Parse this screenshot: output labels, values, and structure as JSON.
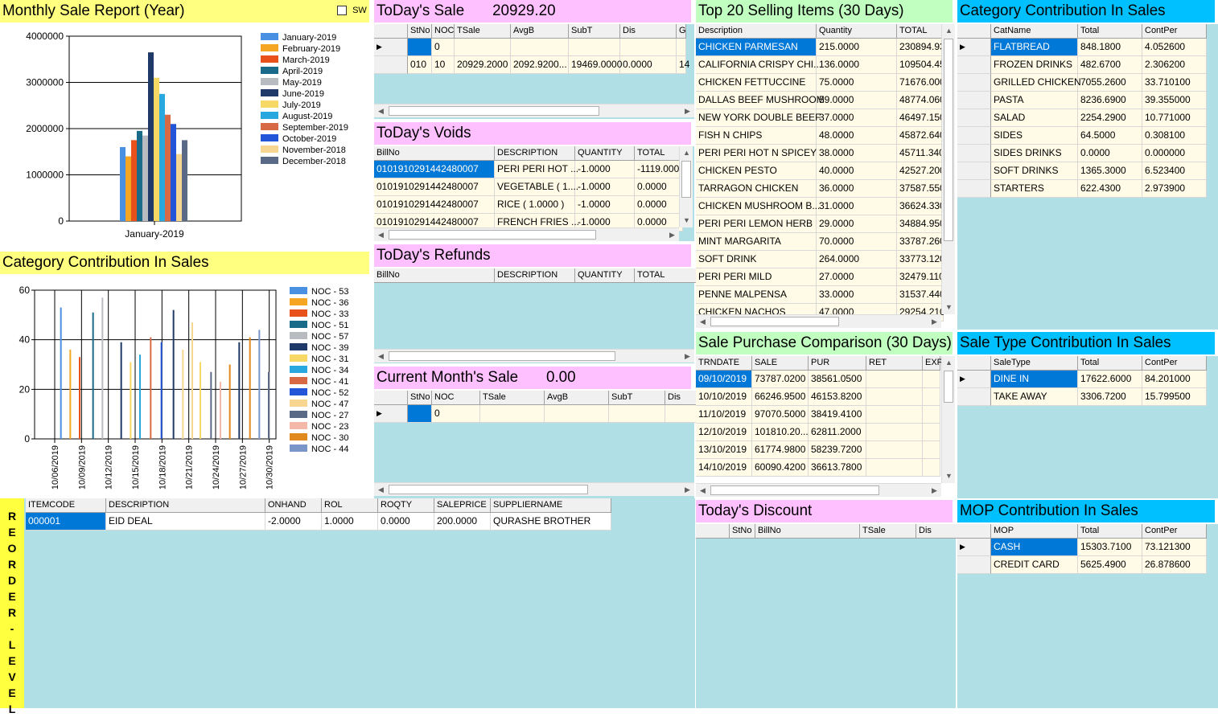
{
  "monthly": {
    "title": "Monthly Sale Report (Year)",
    "sw_label": "SW",
    "chart_data": {
      "type": "bar",
      "categories": [
        "January-2019"
      ],
      "series": [
        {
          "name": "January-2019",
          "values": [
            1600000
          ],
          "color": "#4a90e2"
        },
        {
          "name": "February-2019",
          "values": [
            1400000
          ],
          "color": "#f5a623"
        },
        {
          "name": "March-2019",
          "values": [
            1750000
          ],
          "color": "#e8501c"
        },
        {
          "name": "April-2019",
          "values": [
            1950000
          ],
          "color": "#1a6b8a"
        },
        {
          "name": "May-2019",
          "values": [
            1850000
          ],
          "color": "#b8bcc0"
        },
        {
          "name": "June-2019",
          "values": [
            3650000
          ],
          "color": "#1f3a68"
        },
        {
          "name": "July-2019",
          "values": [
            3100000
          ],
          "color": "#f8d865"
        },
        {
          "name": "August-2019",
          "values": [
            2750000
          ],
          "color": "#29a8e0"
        },
        {
          "name": "September-2019",
          "values": [
            2300000
          ],
          "color": "#d76a45"
        },
        {
          "name": "October-2019",
          "values": [
            2100000
          ],
          "color": "#2255d8"
        },
        {
          "name": "November-2018",
          "values": [
            1450000
          ],
          "color": "#f6d690"
        },
        {
          "name": "December-2018",
          "values": [
            1750000
          ],
          "color": "#5a6a86"
        }
      ],
      "y_ticks": [
        "4000000",
        "3000000",
        "2000000",
        "1000000",
        "0"
      ],
      "ylim": [
        0,
        4000000
      ],
      "legend_position": "right",
      "grid": true
    }
  },
  "category_chart": {
    "title": "Category Contribution In Sales",
    "chart_data": {
      "type": "bar",
      "categories": [
        "10/06/2019",
        "10/09/2019",
        "10/12/2019",
        "10/15/2019",
        "10/18/2019",
        "10/21/2019",
        "10/24/2019",
        "10/27/2019",
        "10/30/2019"
      ],
      "series": [
        {
          "name": "NOC - 53",
          "color": "#4a90e2"
        },
        {
          "name": "NOC - 36",
          "color": "#f5a623"
        },
        {
          "name": "NOC - 33",
          "color": "#e8501c"
        },
        {
          "name": "NOC - 51",
          "color": "#1a6b8a"
        },
        {
          "name": "NOC - 57",
          "color": "#b8bcc0"
        },
        {
          "name": "NOC - 39",
          "color": "#1f3a68"
        },
        {
          "name": "NOC - 31",
          "color": "#f8d865"
        },
        {
          "name": "NOC - 34",
          "color": "#29a8e0"
        },
        {
          "name": "NOC - 41",
          "color": "#d76a45"
        },
        {
          "name": "NOC - 52",
          "color": "#2255d8"
        },
        {
          "name": "NOC - 47",
          "color": "#f6d690"
        },
        {
          "name": "NOC - 27",
          "color": "#5a6a86"
        },
        {
          "name": "NOC - 23",
          "color": "#f4b8a8"
        },
        {
          "name": "NOC - 30",
          "color": "#e08a1e"
        },
        {
          "name": "NOC - 44",
          "color": "#7a96c8"
        }
      ],
      "bars": [
        {
          "x": 0.95,
          "value": 53,
          "color": "#4a90e2"
        },
        {
          "x": 1.3,
          "value": 36,
          "color": "#f5a623"
        },
        {
          "x": 1.65,
          "value": 33,
          "color": "#e8501c"
        },
        {
          "x": 2.15,
          "value": 51,
          "color": "#1a6b8a"
        },
        {
          "x": 2.5,
          "value": 57,
          "color": "#b8bcc0"
        },
        {
          "x": 3.2,
          "value": 39,
          "color": "#1f3a68"
        },
        {
          "x": 3.55,
          "value": 31,
          "color": "#f8d865"
        },
        {
          "x": 3.9,
          "value": 34,
          "color": "#29a8e0"
        },
        {
          "x": 4.3,
          "value": 41,
          "color": "#d76a45"
        },
        {
          "x": 4.7,
          "value": 39,
          "color": "#2255d8"
        },
        {
          "x": 5.15,
          "value": 52,
          "color": "#1f3a68"
        },
        {
          "x": 5.5,
          "value": 36,
          "color": "#f6d690"
        },
        {
          "x": 5.85,
          "value": 47,
          "color": "#f6d690"
        },
        {
          "x": 6.15,
          "value": 31,
          "color": "#f8d865"
        },
        {
          "x": 6.55,
          "value": 27,
          "color": "#5a6a86"
        },
        {
          "x": 6.9,
          "value": 23,
          "color": "#f4b8a8"
        },
        {
          "x": 7.25,
          "value": 30,
          "color": "#e08a1e"
        },
        {
          "x": 7.6,
          "value": 39,
          "color": "#1f3a68"
        },
        {
          "x": 8.0,
          "value": 41,
          "color": "#e08a1e"
        },
        {
          "x": 8.35,
          "value": 44,
          "color": "#7a96c8"
        },
        {
          "x": 8.7,
          "value": 27,
          "color": "#5a6a86"
        }
      ],
      "y_ticks": [
        "60",
        "40",
        "20",
        "0"
      ],
      "ylim": [
        0,
        60
      ],
      "legend_position": "right",
      "grid": true
    }
  },
  "todays_sale": {
    "title": "ToDay's Sale",
    "amount": "20929.20",
    "columns": [
      "StNo",
      "NOC",
      "TSale",
      "AvgB",
      "SubT",
      "Dis",
      "G"
    ],
    "rows": [
      [
        "",
        "0",
        "",
        "",
        "",
        "",
        ""
      ],
      [
        "010",
        "10",
        "20929.2000",
        "2092.9200...",
        "19469.0000",
        "0.0000",
        "14"
      ]
    ]
  },
  "todays_voids": {
    "title": "ToDay's Voids",
    "columns": [
      "BillNo",
      "DESCRIPTION",
      "QUANTITY",
      "TOTAL"
    ],
    "rows": [
      [
        "0101910291442480007",
        "PERI PERI HOT ...",
        "-1.0000",
        "-1119.0000"
      ],
      [
        "0101910291442480007",
        "VEGETABLE ( 1....",
        "-1.0000",
        "0.0000"
      ],
      [
        "0101910291442480007",
        "RICE ( 1.0000 )",
        "-1.0000",
        "0.0000"
      ],
      [
        "0101910291442480007",
        "FRENCH FRIES ...",
        "-1.0000",
        "0.0000"
      ]
    ]
  },
  "todays_refunds": {
    "title": "ToDay's Refunds",
    "columns": [
      "BillNo",
      "DESCRIPTION",
      "QUANTITY",
      "TOTAL"
    ]
  },
  "current_month": {
    "title": "Current Month's Sale",
    "amount": "0.00",
    "columns": [
      "StNo",
      "NOC",
      "TSale",
      "AvgB",
      "SubT",
      "Dis"
    ],
    "rows": [
      [
        "",
        "0",
        "",
        "",
        "",
        ""
      ]
    ]
  },
  "top20": {
    "title": "Top 20 Selling Items (30 Days)",
    "columns": [
      "Description",
      "Quantity",
      "TOTAL"
    ],
    "rows": [
      [
        "CHICKEN PARMESAN",
        "215.0000",
        "230894.93"
      ],
      [
        "CALIFORNIA CRISPY CHI...",
        "136.0000",
        "109504.45"
      ],
      [
        "CHICKEN FETTUCCINE",
        "75.0000",
        "71676.000"
      ],
      [
        "DALLAS BEEF MUSHROOM",
        "59.0000",
        "48774.060"
      ],
      [
        "NEW YORK DOUBLE BEEF",
        "37.0000",
        "46497.150"
      ],
      [
        "FISH N CHIPS",
        "48.0000",
        "45872.640"
      ],
      [
        "PERI PERI HOT N SPICEY",
        "38.0000",
        "45711.340"
      ],
      [
        "CHICKEN PESTO",
        "40.0000",
        "42527.200"
      ],
      [
        "TARRAGON CHICKEN",
        "36.0000",
        "37587.550"
      ],
      [
        "CHICKEN MUSHROOM B...",
        "31.0000",
        "36624.330"
      ],
      [
        "PERI PERI LEMON  HERB",
        "29.0000",
        "34884.950"
      ],
      [
        "MINT MARGARITA",
        "70.0000",
        "33787.260"
      ],
      [
        "SOFT DRINK",
        "264.0000",
        "33773.120"
      ],
      [
        "PERI PERI  MILD",
        "27.0000",
        "32479.110"
      ],
      [
        "PENNE MALPENSA",
        "33.0000",
        "31537.440"
      ],
      [
        "CHICKEN NACHOS",
        "47.0000",
        "29254.210"
      ]
    ]
  },
  "sale_purchase": {
    "title": "Sale Purchase Comparison (30 Days)",
    "columns": [
      "TRNDATE",
      "SALE",
      "PUR",
      "RET",
      "EXP"
    ],
    "rows": [
      [
        "09/10/2019",
        "73787.0200",
        "38561.0500",
        "",
        ""
      ],
      [
        "10/10/2019",
        "66246.9500",
        "46153.8200",
        "",
        ""
      ],
      [
        "11/10/2019",
        "97070.5000",
        "38419.4100",
        "",
        ""
      ],
      [
        "12/10/2019",
        "101810.20...",
        "62811.2000",
        "",
        ""
      ],
      [
        "13/10/2019",
        "61774.9800",
        "58239.7200",
        "",
        ""
      ],
      [
        "14/10/2019",
        "60090.4200",
        "36613.7800",
        "",
        ""
      ]
    ]
  },
  "todays_discount": {
    "title": "Today's Discount",
    "columns": [
      "StNo",
      "BillNo",
      "TSale",
      "Dis"
    ]
  },
  "cat_table": {
    "title": "Category Contribution In Sales",
    "columns": [
      "CatName",
      "Total",
      "ContPer"
    ],
    "rows": [
      [
        "FLATBREAD",
        "848.1800",
        "4.052600"
      ],
      [
        "FROZEN DRINKS",
        "482.6700",
        "2.306200"
      ],
      [
        "GRILLED CHICKEN",
        "7055.2600",
        "33.710100"
      ],
      [
        "PASTA",
        "8236.6900",
        "39.355000"
      ],
      [
        "SALAD",
        "2254.2900",
        "10.771000"
      ],
      [
        "SIDES",
        "64.5000",
        "0.308100"
      ],
      [
        "SIDES DRINKS",
        "0.0000",
        "0.000000"
      ],
      [
        "SOFT DRINKS",
        "1365.3000",
        "6.523400"
      ],
      [
        "STARTERS",
        "622.4300",
        "2.973900"
      ]
    ]
  },
  "sale_type": {
    "title": "Sale Type Contribution In Sales",
    "columns": [
      "SaleType",
      "Total",
      "ContPer"
    ],
    "rows": [
      [
        "DINE IN",
        "17622.6000",
        "84.201000"
      ],
      [
        "TAKE AWAY",
        "3306.7200",
        "15.799500"
      ]
    ]
  },
  "mop": {
    "title": "MOP Contribution In Sales",
    "columns": [
      "MOP",
      "Total",
      "ContPer"
    ],
    "rows": [
      [
        "CASH",
        "15303.7100",
        "73.121300"
      ],
      [
        "CREDIT CARD",
        "5625.4900",
        "26.878600"
      ]
    ]
  },
  "reorder": {
    "letters": [
      "R",
      "E",
      "O",
      "R",
      "D",
      "E",
      "R",
      "-",
      "L",
      "E",
      "V",
      "E",
      "L"
    ],
    "columns": [
      "ITEMCODE",
      "DESCRIPTION",
      "ONHAND",
      "ROL",
      "ROQTY",
      "SALEPRICE",
      "SUPPLIERNAME"
    ],
    "rows": [
      [
        "000001",
        "EID DEAL",
        "-2.0000",
        "1.0000",
        "0.0000",
        "200.0000",
        "QURASHE BROTHER"
      ]
    ]
  }
}
